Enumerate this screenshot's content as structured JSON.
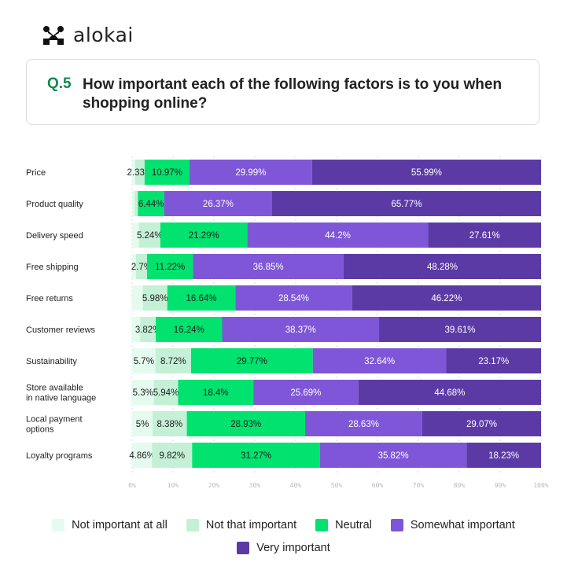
{
  "brand": {
    "name": "alokai"
  },
  "question": {
    "number": "Q.5",
    "text": "How important each of the following factors is to you when shopping online?"
  },
  "chart_data": {
    "type": "bar",
    "orientation": "horizontal",
    "stacked": true,
    "categories": [
      "Price",
      "Product quality",
      "Delivery speed",
      "Free shipping",
      "Free returns",
      "Customer reviews",
      "Sustainability",
      "Store available\nin native language",
      "Local payment\noptions",
      "Loyalty programs"
    ],
    "series": [
      {
        "name": "Not important at all",
        "color": "#e5fbef",
        "values": [
          0.72,
          0.6,
          1.66,
          0.95,
          2.62,
          1.96,
          5.7,
          5.3,
          5,
          4.86
        ],
        "labels": [
          null,
          null,
          null,
          null,
          null,
          null,
          "5.7%",
          "5.3%",
          "5%",
          "4.86%"
        ]
      },
      {
        "name": "Not that important",
        "color": "#c4f0d6",
        "values": [
          2.33,
          0.82,
          5.24,
          2.7,
          5.98,
          3.82,
          8.72,
          5.94,
          8.38,
          9.82
        ],
        "labels": [
          "2.33%",
          null,
          "5.24%",
          "2.7%",
          "5.98%",
          "3.82%",
          "8.72%",
          "5.94%",
          "8.38%",
          "9.82%"
        ]
      },
      {
        "name": "Neutral",
        "color": "#02e26e",
        "values": [
          10.97,
          6.44,
          21.29,
          11.22,
          16.64,
          16.24,
          29.77,
          18.4,
          28.93,
          31.27
        ],
        "labels": [
          "10.97%",
          "6.44%",
          "21.29%",
          "11.22%",
          "16.64%",
          "16.24%",
          "29.77%",
          "18.4%",
          "28.93%",
          "31.27%"
        ]
      },
      {
        "name": "Somewhat important",
        "color": "#7e56d7",
        "values": [
          29.99,
          26.37,
          44.2,
          36.85,
          28.54,
          38.37,
          32.64,
          25.69,
          28.63,
          35.82
        ],
        "labels": [
          "29.99%",
          "26.37%",
          "44.2%",
          "36.85%",
          "28.54%",
          "38.37%",
          "32.64%",
          "25.69%",
          "28.63%",
          "35.82%"
        ]
      },
      {
        "name": "Very important",
        "color": "#5c3aa6",
        "values": [
          55.99,
          65.77,
          27.61,
          48.28,
          46.22,
          39.61,
          23.17,
          44.68,
          29.07,
          18.23
        ],
        "labels": [
          "55.99%",
          "65.77%",
          "27.61%",
          "48.28%",
          "46.22%",
          "39.61%",
          "23.17%",
          "44.68%",
          "29.07%",
          "18.23%"
        ]
      }
    ],
    "xlim": [
      0,
      100
    ],
    "xticks": [
      "0%",
      "10%",
      "20%",
      "30%",
      "40%",
      "50%",
      "60%",
      "70%",
      "80%",
      "90%",
      "100%"
    ],
    "grid": true,
    "legend": "bottom"
  }
}
